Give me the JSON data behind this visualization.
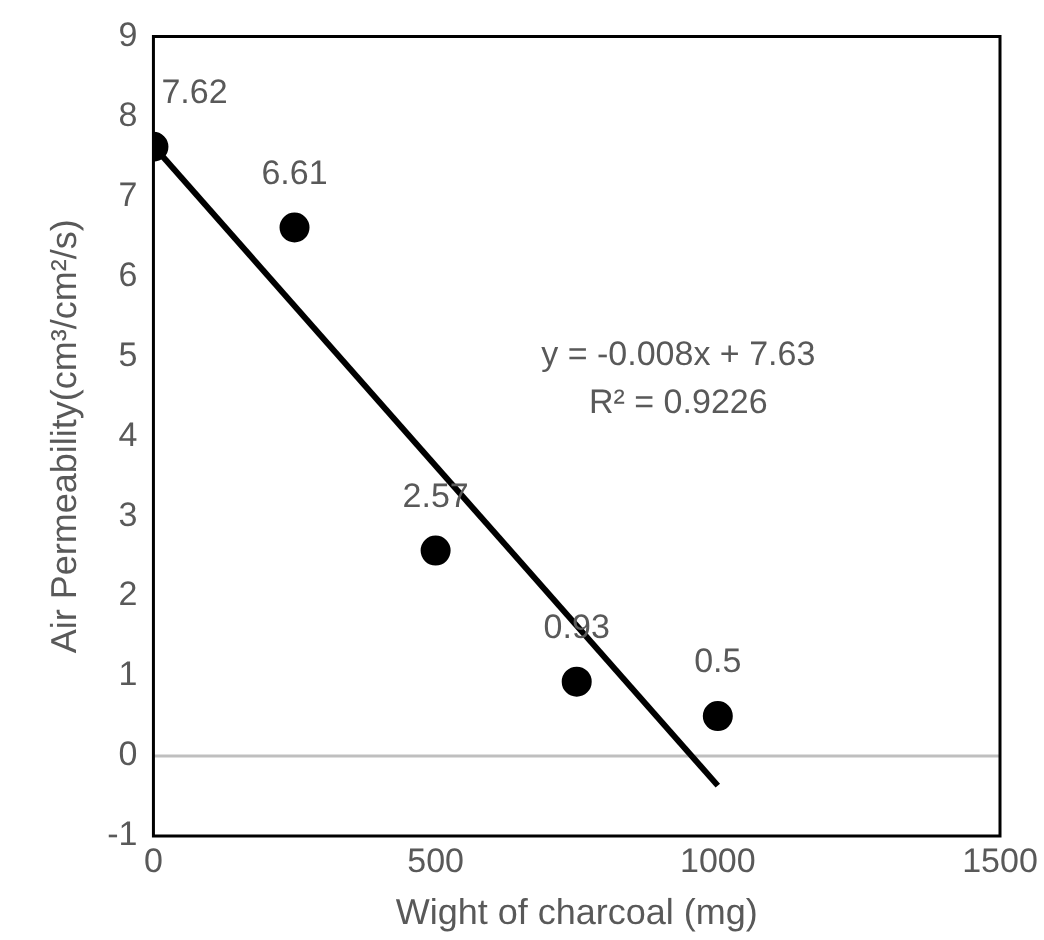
{
  "chart_data": {
    "type": "scatter",
    "xlabel": "Wight of charcoal (mg)",
    "ylabel": "Air Permeability(cm³/cm²/s)",
    "x": [
      0,
      250,
      500,
      750,
      1000
    ],
    "series": [
      {
        "type": "scatter",
        "marker": "circle",
        "color": "#000000",
        "values": [
          7.62,
          6.61,
          2.57,
          0.93,
          0.5
        ],
        "value_labels": [
          "7.62",
          "6.61",
          "2.57",
          "0.93",
          "0.5"
        ]
      },
      {
        "type": "line",
        "color": "#000000",
        "x": [
          0,
          1000
        ],
        "values": [
          7.63,
          -0.37
        ]
      }
    ],
    "grid": false,
    "legend": false,
    "xlim": [
      0,
      1500
    ],
    "xticks": [
      0,
      500,
      1000,
      1500
    ],
    "ylim": [
      -1,
      9
    ],
    "yticks": [
      -1,
      0,
      1,
      2,
      3,
      4,
      5,
      6,
      7,
      8,
      9
    ],
    "ref_lines": [
      {
        "axis": "y",
        "value": 0,
        "color": "#bfbfbf"
      }
    ],
    "annotations": [
      "y = -0.008x + 7.63",
      "R² = 0.9226"
    ]
  }
}
